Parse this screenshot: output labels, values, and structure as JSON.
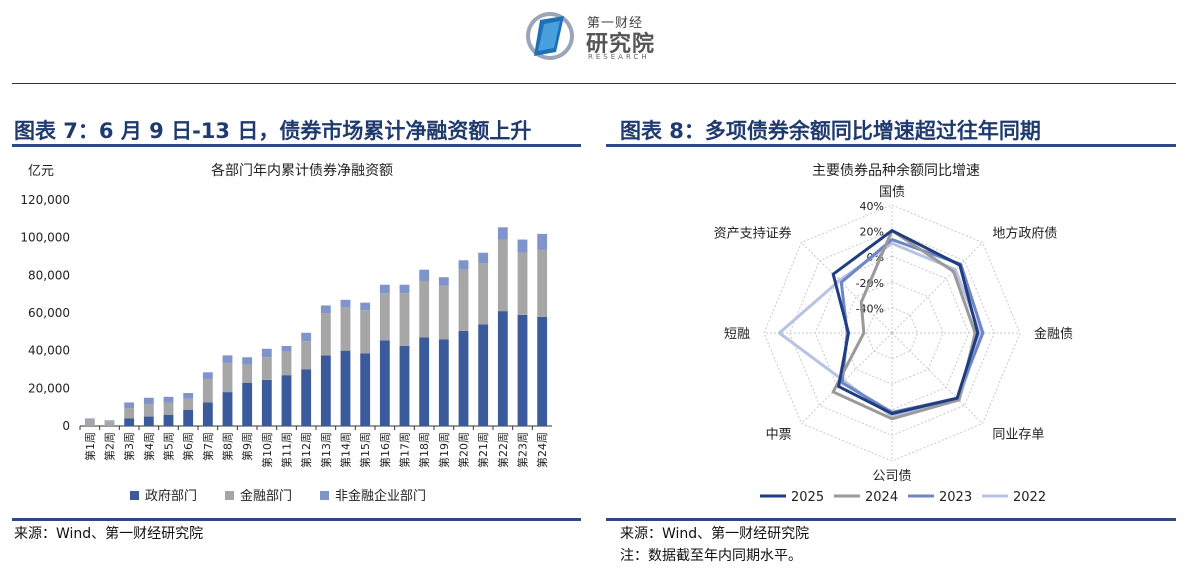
{
  "header": {
    "logo_brand": "第一财经",
    "logo_main": "研究院",
    "logo_sub": "RESEARCH"
  },
  "figure7": {
    "title": "图表 7：6 月 9 日-13 日，债券市场累计净融资额上升",
    "source": "来源：Wind、第一财经研究院"
  },
  "figure8": {
    "title": "图表 8：多项债券余额同比增速超过往年同期",
    "source": "来源：Wind、第一财经研究院",
    "note": "注：数据截至年内同期水平。"
  },
  "chart_data": [
    {
      "type": "bar",
      "stacked": true,
      "title": "各部门年内累计债券净融资额",
      "ylabel": "亿元",
      "ylim": [
        0,
        120000
      ],
      "yticks": [
        0,
        20000,
        40000,
        60000,
        80000,
        100000,
        120000
      ],
      "ytick_labels": [
        "0",
        "20,000",
        "40,000",
        "60,000",
        "80,000",
        "100,000",
        "120,000"
      ],
      "categories": [
        "第1周",
        "第2周",
        "第3周",
        "第4周",
        "第5周",
        "第6周",
        "第7周",
        "第8周",
        "第9周",
        "第10周",
        "第11周",
        "第12周",
        "第13周",
        "第14周",
        "第15周",
        "第16周",
        "第17周",
        "第18周",
        "第19周",
        "第20周",
        "第21周",
        "第22周",
        "第23周",
        "第24周"
      ],
      "series": [
        {
          "name": "政府部门",
          "color": "#3a5a9c",
          "values": [
            0,
            0,
            4000,
            5000,
            6000,
            8500,
            12500,
            18000,
            23000,
            24500,
            27000,
            30000,
            37500,
            40000,
            38500,
            45500,
            42500,
            47000,
            46000,
            50500,
            54000,
            61000,
            59000,
            58000
          ]
        },
        {
          "name": "金融部门",
          "color": "#a6a6a6",
          "values": [
            3500,
            2500,
            5500,
            6500,
            6500,
            6000,
            12500,
            15500,
            9500,
            12000,
            12500,
            15000,
            22500,
            23000,
            23000,
            25000,
            28000,
            30000,
            28500,
            32500,
            32500,
            38000,
            33000,
            35500
          ]
        },
        {
          "name": "非金融企业部门",
          "color": "#8094cc",
          "values": [
            500,
            500,
            3000,
            3500,
            3000,
            3000,
            3500,
            4000,
            4000,
            4500,
            3000,
            4500,
            4000,
            4000,
            4000,
            4500,
            4500,
            6000,
            4500,
            5000,
            5500,
            6500,
            7000,
            8500
          ]
        }
      ],
      "legend_position": "bottom",
      "grid": false
    },
    {
      "type": "radar",
      "title": "主要债券品种余额同比增速",
      "categories": [
        "国债",
        "地方政府债",
        "金融债",
        "同业存单",
        "公司债",
        "中票",
        "短融",
        "资产支持证券"
      ],
      "rlim": [
        -60,
        40
      ],
      "rticks": [
        -40,
        -20,
        0,
        20,
        40
      ],
      "rtick_labels": [
        "-40%",
        "-20%",
        "0%",
        "20%",
        "40%"
      ],
      "series": [
        {
          "name": "2025",
          "color": "#1f3d80",
          "values": [
            20,
            15,
            7,
            12,
            3,
            -1,
            -26,
            5
          ]
        },
        {
          "name": "2024",
          "color": "#9a9a9a",
          "values": [
            20,
            8,
            5,
            14,
            7,
            5,
            -38,
            -26
          ]
        },
        {
          "name": "2023",
          "color": "#6f86c6",
          "values": [
            13,
            16,
            11,
            12,
            2,
            -5,
            -25,
            -4
          ]
        },
        {
          "name": "2022",
          "color": "#b6c3e3",
          "values": [
            10,
            10,
            9,
            14,
            5,
            -7,
            28,
            -2
          ]
        }
      ],
      "legend_position": "bottom",
      "grid": true
    }
  ]
}
